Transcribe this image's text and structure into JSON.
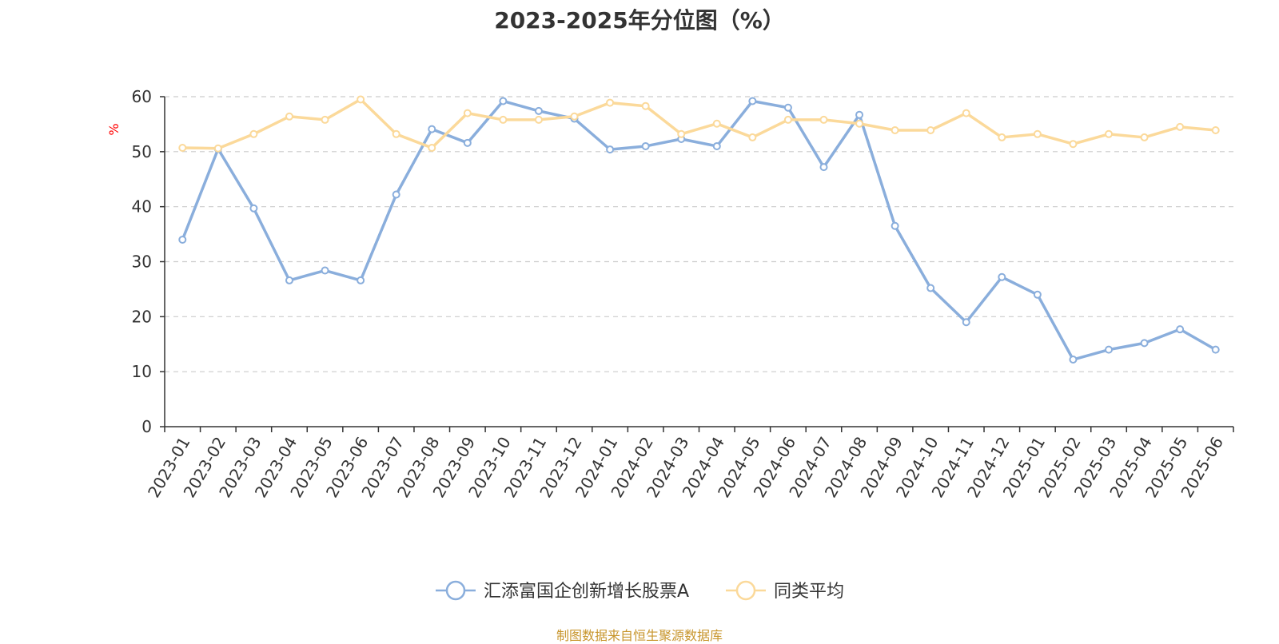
{
  "chart_data": {
    "type": "line",
    "title": "2023-2025年分位图（%）",
    "ylabel": "%",
    "xlabel": "",
    "ylim": [
      0,
      60
    ],
    "yticks": [
      0,
      10,
      20,
      30,
      40,
      50,
      60
    ],
    "grid": true,
    "legend_position": "bottom",
    "categories": [
      "2023-01",
      "2023-02",
      "2023-03",
      "2023-04",
      "2023-05",
      "2023-06",
      "2023-07",
      "2023-08",
      "2023-09",
      "2023-10",
      "2023-11",
      "2023-12",
      "2024-01",
      "2024-02",
      "2024-03",
      "2024-04",
      "2024-05",
      "2024-06",
      "2024-07",
      "2024-08",
      "2024-09",
      "2024-10",
      "2024-11",
      "2024-12",
      "2025-01",
      "2025-02",
      "2025-03",
      "2025-04",
      "2025-05",
      "2025-06"
    ],
    "series": [
      {
        "name": "汇添富国企创新增长股票A",
        "color": "#8aaedc",
        "values": [
          34.0,
          50.5,
          39.7,
          26.6,
          28.4,
          26.6,
          42.2,
          54.1,
          51.6,
          59.2,
          57.4,
          56.0,
          50.4,
          51.0,
          52.3,
          51.0,
          59.2,
          58.0,
          47.2,
          56.7,
          36.5,
          25.2,
          19.0,
          27.2,
          24.0,
          12.2,
          14.0,
          15.2,
          17.7,
          14.0
        ]
      },
      {
        "name": "同类平均",
        "color": "#fbd99a",
        "values": [
          50.7,
          50.6,
          53.2,
          56.4,
          55.8,
          59.5,
          53.2,
          50.7,
          57.0,
          55.8,
          55.8,
          56.4,
          58.9,
          58.3,
          53.2,
          55.1,
          52.6,
          55.8,
          55.8,
          55.1,
          53.9,
          53.9,
          57.0,
          52.6,
          53.2,
          51.4,
          53.2,
          52.6,
          54.5,
          53.9
        ]
      }
    ]
  },
  "footer": {
    "source": "制图数据来自恒生聚源数据库"
  }
}
